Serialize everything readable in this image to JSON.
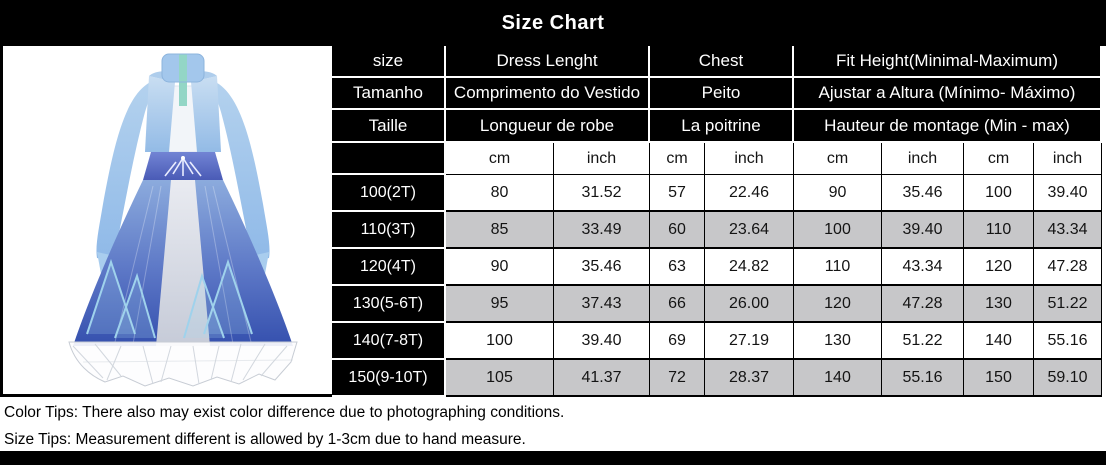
{
  "title": "Size Chart",
  "dress": {
    "alt": "blue princess dress product photo"
  },
  "table": {
    "header_rows": [
      {
        "size": "size",
        "dress_length": "Dress Lenght",
        "chest": "Chest",
        "fit_height": "Fit Height(Minimal-Maximum)"
      },
      {
        "size": "Tamanho",
        "dress_length": "Comprimento do Vestido",
        "chest": "Peito",
        "fit_height": "Ajustar a Altura (Mínimo- Máximo)"
      },
      {
        "size": "Taille",
        "dress_length": "Longueur de robe",
        "chest": "La poitrine",
        "fit_height": "Hauteur de montage (Min - max)"
      }
    ],
    "unit_row": [
      "cm",
      "inch",
      "cm",
      "inch",
      "cm",
      "inch",
      "cm",
      "inch"
    ],
    "rows": [
      {
        "size": "100(2T)",
        "values": [
          "80",
          "31.52",
          "57",
          "22.46",
          "90",
          "35.46",
          "100",
          "39.40"
        ],
        "shaded": false
      },
      {
        "size": "110(3T)",
        "values": [
          "85",
          "33.49",
          "60",
          "23.64",
          "100",
          "39.40",
          "110",
          "43.34"
        ],
        "shaded": true
      },
      {
        "size": "120(4T)",
        "values": [
          "90",
          "35.46",
          "63",
          "24.82",
          "110",
          "43.34",
          "120",
          "47.28"
        ],
        "shaded": false
      },
      {
        "size": "130(5-6T)",
        "values": [
          "95",
          "37.43",
          "66",
          "26.00",
          "120",
          "47.28",
          "130",
          "51.22"
        ],
        "shaded": true
      },
      {
        "size": "140(7-8T)",
        "values": [
          "100",
          "39.40",
          "69",
          "27.19",
          "130",
          "51.22",
          "140",
          "55.16"
        ],
        "shaded": false
      },
      {
        "size": "150(9-10T)",
        "values": [
          "105",
          "41.37",
          "72",
          "28.37",
          "140",
          "55.16",
          "150",
          "59.10"
        ],
        "shaded": true
      }
    ]
  },
  "tips": {
    "color_tip": "Color Tips: There also may exist color difference due to photographing conditions.",
    "size_tip": "Size Tips: Measurement different is allowed by 1-3cm due to hand measure."
  },
  "colors": {
    "band": "#000000",
    "header_cell": "#000000",
    "shaded_row": "#c7c7c9",
    "grid_line": "#000000",
    "text_light": "#ffffff",
    "text_dark": "#141414"
  }
}
